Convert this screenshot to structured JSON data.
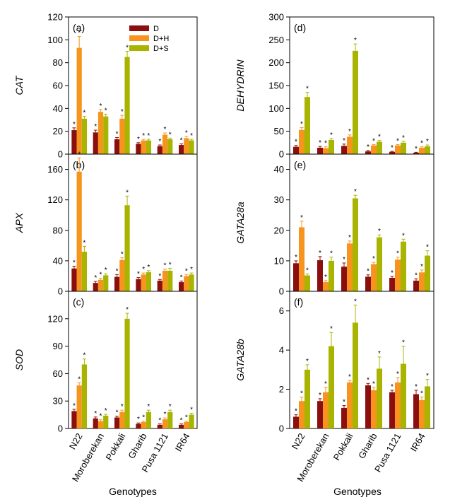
{
  "chart_data": [
    {
      "type": "bar",
      "panel": "(a)",
      "ylabel": "CAT",
      "ylim": [
        0,
        120
      ],
      "yticks": [
        0,
        20,
        40,
        60,
        80,
        100,
        120
      ],
      "categories": [
        "N22",
        "Moroberekan",
        "Pokkali",
        "Gharib",
        "Pusa 1121",
        "IR64"
      ],
      "legend": [
        "D",
        "D+H",
        "D+S"
      ],
      "series": [
        {
          "name": "D",
          "color": "#8b0f0f",
          "values": [
            21,
            19,
            13,
            9,
            7,
            8
          ],
          "errors": [
            2,
            2,
            1.5,
            1,
            1,
            1
          ]
        },
        {
          "name": "D+H",
          "color": "#f7941d",
          "values": [
            93,
            37,
            31,
            12,
            17,
            14
          ],
          "errors": [
            10,
            2,
            3,
            1,
            1.5,
            1.5
          ]
        },
        {
          "name": "D+S",
          "color": "#a8b400",
          "values": [
            31,
            33,
            85,
            12,
            13,
            12
          ],
          "errors": [
            2,
            2,
            5,
            1,
            1,
            1
          ]
        }
      ]
    },
    {
      "type": "bar",
      "panel": "(b)",
      "ylabel": "APX",
      "ylim": [
        0,
        180
      ],
      "yticks": [
        0,
        40,
        80,
        120,
        160
      ],
      "categories": [
        "N22",
        "Moroberekan",
        "Pokkali",
        "Gharib",
        "Pusa 1121",
        "IR64"
      ],
      "series": [
        {
          "name": "D",
          "color": "#8b0f0f",
          "values": [
            30,
            11,
            19,
            16,
            14,
            12
          ],
          "errors": [
            3,
            2,
            3,
            2,
            1.5,
            1.5
          ]
        },
        {
          "name": "D+H",
          "color": "#f7941d",
          "values": [
            157,
            15,
            41,
            22,
            27,
            20
          ],
          "errors": [
            18,
            2,
            3,
            2,
            2,
            2
          ]
        },
        {
          "name": "D+S",
          "color": "#a8b400",
          "values": [
            52,
            21,
            113,
            25,
            27,
            22
          ],
          "errors": [
            7,
            2,
            12,
            2,
            3,
            2
          ]
        }
      ]
    },
    {
      "type": "bar",
      "panel": "(c)",
      "ylabel": "SOD",
      "ylim": [
        0,
        150
      ],
      "yticks": [
        0,
        30,
        60,
        90,
        120
      ],
      "categories": [
        "N22",
        "Moroberekan",
        "Pokkali",
        "Gharib",
        "Pusa 1121",
        "IR64"
      ],
      "series": [
        {
          "name": "D",
          "color": "#8b0f0f",
          "values": [
            19,
            11,
            12,
            5,
            4,
            4
          ],
          "errors": [
            2,
            1.5,
            1.5,
            1,
            1,
            1
          ]
        },
        {
          "name": "D+H",
          "color": "#f7941d",
          "values": [
            47,
            8,
            18,
            7,
            10,
            7
          ],
          "errors": [
            3,
            1.5,
            2,
            1,
            1.5,
            1
          ]
        },
        {
          "name": "D+S",
          "color": "#a8b400",
          "values": [
            70,
            14,
            120,
            18,
            18,
            15
          ],
          "errors": [
            6,
            1.5,
            6,
            2,
            2,
            1.5
          ]
        }
      ]
    },
    {
      "type": "bar",
      "panel": "(d)",
      "ylabel": "DEHYDRIN",
      "ylim": [
        0,
        300
      ],
      "yticks": [
        0,
        50,
        100,
        150,
        200,
        250,
        300
      ],
      "categories": [
        "N22",
        "Moroberekan",
        "Pokkali",
        "Gharib",
        "Pusa 1121",
        "IR64"
      ],
      "series": [
        {
          "name": "D",
          "color": "#8b0f0f",
          "values": [
            16,
            14,
            18,
            6,
            5,
            3
          ],
          "errors": [
            3,
            3,
            4,
            2,
            1,
            1
          ]
        },
        {
          "name": "D+H",
          "color": "#f7941d",
          "values": [
            53,
            13,
            38,
            19,
            19,
            14
          ],
          "errors": [
            5,
            3,
            4,
            2,
            2,
            2
          ]
        },
        {
          "name": "D+S",
          "color": "#a8b400",
          "values": [
            125,
            31,
            226,
            27,
            25,
            17
          ],
          "errors": [
            10,
            3,
            15,
            3,
            3,
            3
          ]
        }
      ]
    },
    {
      "type": "bar",
      "panel": "(e)",
      "ylabel": "GATA28a",
      "ylim": [
        0,
        45
      ],
      "yticks": [
        0,
        10,
        20,
        30,
        40
      ],
      "categories": [
        "N22",
        "Moroberekan",
        "Pokkali",
        "Gharib",
        "Pusa 1121",
        "IR64"
      ],
      "series": [
        {
          "name": "D",
          "color": "#8b0f0f",
          "values": [
            9.2,
            10.2,
            8.1,
            4.8,
            4.4,
            3.5
          ],
          "errors": [
            0.8,
            1.2,
            1.2,
            0.6,
            0.5,
            0.6
          ]
        },
        {
          "name": "D+H",
          "color": "#f7941d",
          "values": [
            21,
            3,
            15.7,
            8.9,
            10.4,
            6.2
          ],
          "errors": [
            2,
            0.5,
            0.8,
            0.6,
            0.8,
            0.8
          ]
        },
        {
          "name": "D+S",
          "color": "#a8b400",
          "values": [
            5.2,
            10,
            30.5,
            17.7,
            16.3,
            11.7
          ],
          "errors": [
            0.5,
            1.2,
            1,
            0.8,
            0.8,
            1.6
          ]
        }
      ]
    },
    {
      "type": "bar",
      "panel": "(f)",
      "ylabel": "GATA28b",
      "ylim": [
        0,
        7
      ],
      "yticks": [
        0,
        2,
        4,
        6
      ],
      "categories": [
        "N22",
        "Moroberekan",
        "Pokkali",
        "Gharib",
        "Pusa 1121",
        "IR64"
      ],
      "series": [
        {
          "name": "D",
          "color": "#8b0f0f",
          "values": [
            0.6,
            1.4,
            1.05,
            2.2,
            1.85,
            1.75
          ],
          "errors": [
            0.1,
            0.12,
            0.12,
            0.1,
            0.1,
            0.2
          ]
        },
        {
          "name": "D+H",
          "color": "#f7941d",
          "values": [
            1.4,
            1.85,
            2.35,
            1.95,
            2.35,
            1.45
          ],
          "errors": [
            0.2,
            0.25,
            0.1,
            0.15,
            0.25,
            0.15
          ]
        },
        {
          "name": "D+S",
          "color": "#a8b400",
          "values": [
            3,
            4.2,
            5.4,
            3.05,
            3.3,
            2.15
          ],
          "errors": [
            0.25,
            0.7,
            0.9,
            0.6,
            0.9,
            0.35
          ]
        }
      ]
    }
  ],
  "xlabel": "Genotypes",
  "significance_marker": "*"
}
